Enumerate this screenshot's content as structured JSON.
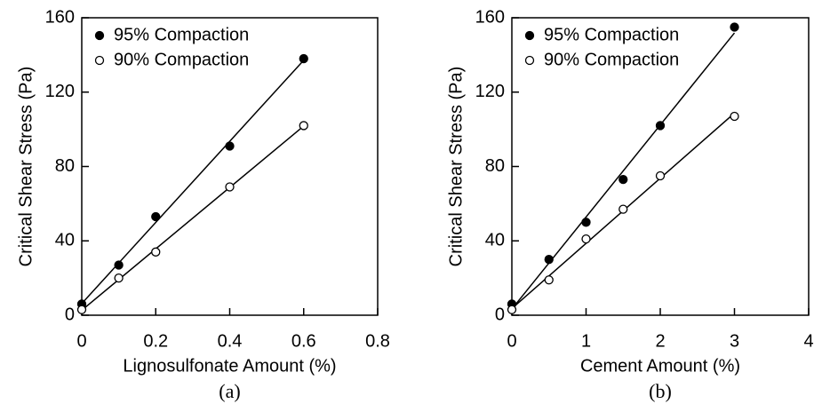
{
  "chart_data": [
    {
      "type": "scatter",
      "caption": "(a)",
      "xlabel": "Lignosulfonate Amount (%)",
      "ylabel": "Critical Shear Stress (Pa)",
      "xlim": [
        0,
        0.8
      ],
      "xticks": [
        0,
        0.2,
        0.4,
        0.6,
        0.8
      ],
      "ylim": [
        0,
        160
      ],
      "yticks": [
        0,
        40,
        80,
        120,
        160
      ],
      "legend": "upper left",
      "series": [
        {
          "name": "95% Compaction",
          "color": "#000000",
          "marker": "filled",
          "trendline": true,
          "x": [
            0,
            0.1,
            0.2,
            0.4,
            0.6
          ],
          "values": [
            6,
            27,
            53,
            91,
            138
          ]
        },
        {
          "name": "90% Compaction",
          "color": "#000000",
          "marker": "open",
          "trendline": true,
          "x": [
            0,
            0.1,
            0.2,
            0.4,
            0.6
          ],
          "values": [
            3,
            20,
            34,
            69,
            102
          ]
        }
      ]
    },
    {
      "type": "scatter",
      "caption": "(b)",
      "xlabel": "Cement Amount (%)",
      "ylabel": "Critical Shear Stress (Pa)",
      "xlim": [
        0,
        4
      ],
      "xticks": [
        0,
        1,
        2,
        3,
        4
      ],
      "ylim": [
        0,
        160
      ],
      "yticks": [
        0,
        40,
        80,
        120,
        160
      ],
      "legend": "upper left",
      "series": [
        {
          "name": "95% Compaction",
          "color": "#000000",
          "marker": "filled",
          "trendline": true,
          "x": [
            0,
            0.5,
            1,
            1.5,
            2,
            3
          ],
          "values": [
            6,
            30,
            50,
            73,
            102,
            155
          ]
        },
        {
          "name": "90% Compaction",
          "color": "#000000",
          "marker": "open",
          "trendline": true,
          "x": [
            0,
            0.5,
            1,
            1.5,
            2,
            3
          ],
          "values": [
            3,
            19,
            41,
            57,
            75,
            107
          ]
        }
      ]
    }
  ]
}
